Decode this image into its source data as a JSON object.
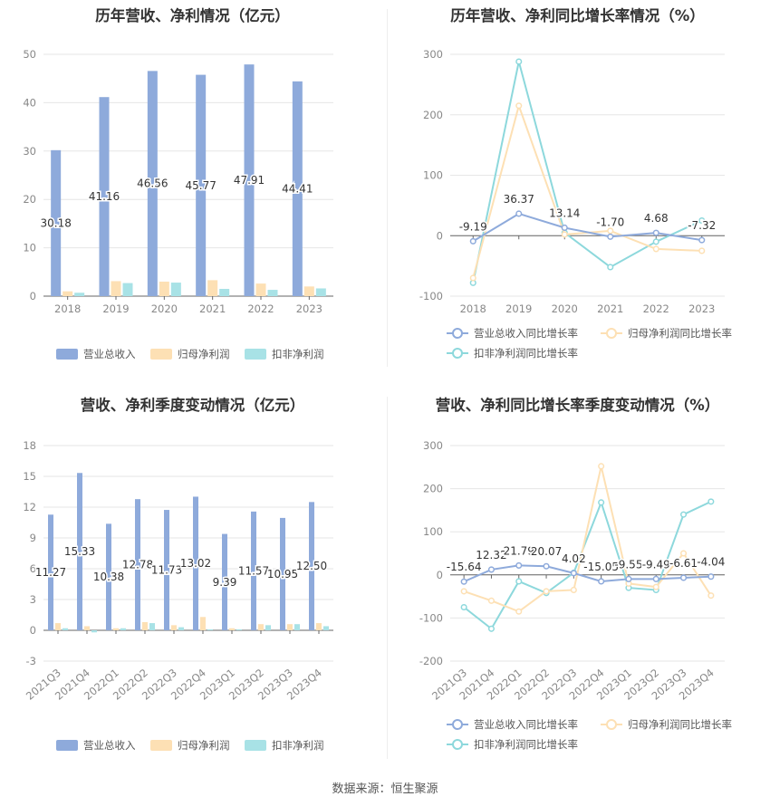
{
  "footer": {
    "source": "数据来源：恒生聚源"
  },
  "panels": [
    {
      "title": "历年营收、净利情况（亿元）"
    },
    {
      "title": "历年营收、净利同比增长率情况（%）"
    },
    {
      "title": "营收、净利季度变动情况（亿元）"
    },
    {
      "title": "营收、净利同比增长率季度变动情况（%）"
    }
  ],
  "colors": {
    "blue": "#8eaadb",
    "orange": "#fde0b4",
    "teal": "#a8e2e6",
    "line_blue": "#8eaadb",
    "line_orange": "#fde0b4",
    "line_teal": "#8dd8dc"
  },
  "chart_data": [
    {
      "type": "bar",
      "title": "历年营收、净利情况（亿元）",
      "categories": [
        "2018",
        "2019",
        "2020",
        "2021",
        "2022",
        "2023"
      ],
      "ylim": [
        0,
        50
      ],
      "yticks": [
        0,
        10,
        20,
        30,
        40,
        50
      ],
      "series": [
        {
          "name": "营业总收入",
          "values": [
            30.18,
            41.16,
            46.56,
            45.77,
            47.91,
            44.41
          ],
          "labels": [
            "30.18",
            "41.16",
            "46.56",
            "45.77",
            "47.91",
            "44.41"
          ]
        },
        {
          "name": "归母净利润",
          "values": [
            1.0,
            3.1,
            3.0,
            3.3,
            2.6,
            2.0
          ]
        },
        {
          "name": "扣非净利润",
          "values": [
            0.7,
            2.7,
            2.8,
            1.5,
            1.3,
            1.6
          ]
        }
      ],
      "legend": "bottom"
    },
    {
      "type": "line",
      "title": "历年营收、净利同比增长率情况（%）",
      "categories": [
        "2018",
        "2019",
        "2020",
        "2021",
        "2022",
        "2023"
      ],
      "ylim": [
        -100,
        300
      ],
      "yticks": [
        -100,
        0,
        100,
        200,
        300
      ],
      "series": [
        {
          "name": "营业总收入同比增长率",
          "values": [
            -9.19,
            36.37,
            13.14,
            -1.7,
            4.68,
            -7.32
          ],
          "labels": [
            "-9.19",
            "36.37",
            "13.14",
            "-1.70",
            "4.68",
            "-7.32"
          ]
        },
        {
          "name": "归母净利润同比增长率",
          "values": [
            -70,
            215,
            2,
            8,
            -22,
            -25
          ]
        },
        {
          "name": "扣非净利润同比增长率",
          "values": [
            -78,
            288,
            5,
            -52,
            -10,
            25
          ]
        }
      ],
      "legend": "bottom"
    },
    {
      "type": "bar",
      "title": "营收、净利季度变动情况（亿元）",
      "categories": [
        "2021Q3",
        "2021Q4",
        "2022Q1",
        "2022Q2",
        "2022Q3",
        "2022Q4",
        "2023Q1",
        "2023Q2",
        "2023Q3",
        "2023Q4"
      ],
      "ylim": [
        -3,
        18
      ],
      "yticks": [
        -3,
        0,
        3,
        6,
        9,
        12,
        15,
        18
      ],
      "series": [
        {
          "name": "营业总收入",
          "values": [
            11.27,
            15.33,
            10.38,
            12.78,
            11.73,
            13.02,
            9.39,
            11.57,
            10.95,
            12.5
          ],
          "labels": [
            "11.27",
            "15.33",
            "10.38",
            "12.78",
            "11.73",
            "13.02",
            "9.39",
            "11.57",
            "10.95",
            "12.50"
          ]
        },
        {
          "name": "归母净利润",
          "values": [
            0.7,
            0.4,
            0.2,
            0.8,
            0.5,
            1.3,
            0.2,
            0.6,
            0.6,
            0.7
          ]
        },
        {
          "name": "扣非净利润",
          "values": [
            0.2,
            -0.2,
            0.2,
            0.7,
            0.3,
            0.1,
            0.1,
            0.5,
            0.6,
            0.4
          ]
        }
      ],
      "legend": "bottom"
    },
    {
      "type": "line",
      "title": "营收、净利同比增长率季度变动情况（%）",
      "categories": [
        "2021Q3",
        "2021Q4",
        "2022Q1",
        "2022Q2",
        "2022Q3",
        "2022Q4",
        "2023Q1",
        "2023Q2",
        "2023Q3",
        "2023Q4"
      ],
      "ylim": [
        -200,
        300
      ],
      "yticks": [
        -200,
        -100,
        0,
        100,
        200,
        300
      ],
      "series": [
        {
          "name": "营业总收入同比增长率",
          "values": [
            -15.64,
            12.32,
            21.79,
            20.07,
            4.02,
            -15.05,
            -9.55,
            -9.49,
            -6.61,
            -4.04
          ],
          "labels": [
            "-15.64",
            "12.32",
            "21.79",
            "20.07",
            "4.02",
            "-15.05",
            "-9.55",
            "-9.49",
            "-6.61",
            "-4.04"
          ]
        },
        {
          "name": "归母净利润同比增长率",
          "values": [
            -38,
            -60,
            -85,
            -38,
            -35,
            252,
            -20,
            -28,
            50,
            -48
          ]
        },
        {
          "name": "扣非净利润同比增长率",
          "values": [
            -75,
            -125,
            -15,
            -42,
            5,
            168,
            -30,
            -35,
            140,
            170
          ]
        }
      ],
      "legend": "bottom"
    }
  ]
}
